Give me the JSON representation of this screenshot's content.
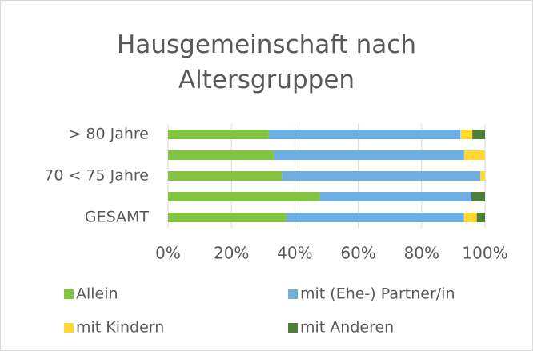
{
  "chart_data": {
    "type": "stacked-barh",
    "title": "Hausgemeinschaft nach Altersgruppen",
    "categories": [
      "> 80 Jahre",
      null,
      "70 < 75 Jahre",
      null,
      "GESAMT"
    ],
    "series": [
      {
        "name": "Allein",
        "color": "#82c341",
        "values": [
          31.8,
          33.3,
          35.9,
          47.7,
          37.1
        ]
      },
      {
        "name": "mit (Ehe-) Partner/in",
        "color": "#6eaee0",
        "values": [
          60.4,
          60.1,
          62.6,
          48.0,
          56.3
        ]
      },
      {
        "name": "mit Kindern",
        "color": "#ffd832",
        "values": [
          3.8,
          6.6,
          1.5,
          0,
          4.0
        ]
      },
      {
        "name": "mit Anderen",
        "color": "#4d7e38",
        "values": [
          4.0,
          0,
          0,
          4.3,
          2.6
        ]
      }
    ],
    "xlim": [
      0,
      100
    ],
    "xticks": [
      {
        "value": 0,
        "label": "0%"
      },
      {
        "value": 20,
        "label": "20%"
      },
      {
        "value": 40,
        "label": "40%"
      },
      {
        "value": 60,
        "label": "60%"
      },
      {
        "value": 80,
        "label": "80%"
      },
      {
        "value": 100,
        "label": "100%"
      }
    ],
    "grid": true,
    "legend": "bottom"
  }
}
